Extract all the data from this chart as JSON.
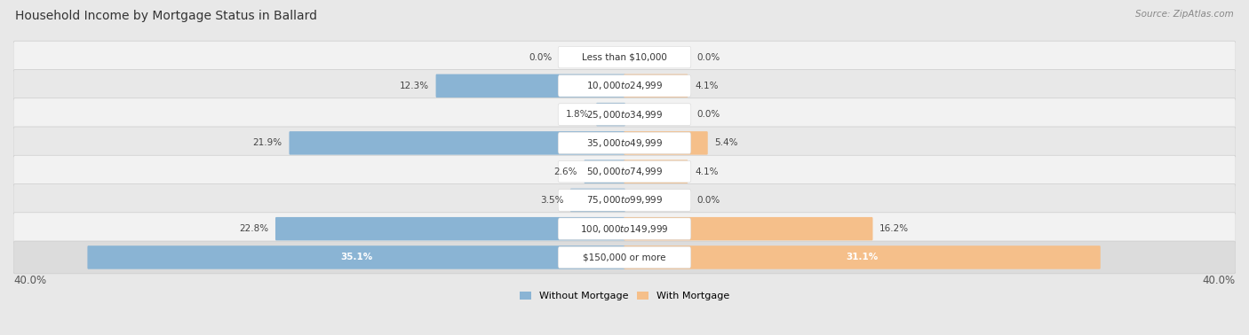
{
  "title": "Household Income by Mortgage Status in Ballard",
  "source": "Source: ZipAtlas.com",
  "categories": [
    "Less than $10,000",
    "$10,000 to $24,999",
    "$25,000 to $34,999",
    "$35,000 to $49,999",
    "$50,000 to $74,999",
    "$75,000 to $99,999",
    "$100,000 to $149,999",
    "$150,000 or more"
  ],
  "without_mortgage": [
    0.0,
    12.3,
    1.8,
    21.9,
    2.6,
    3.5,
    22.8,
    35.1
  ],
  "with_mortgage": [
    0.0,
    4.1,
    0.0,
    5.4,
    4.1,
    0.0,
    16.2,
    31.1
  ],
  "color_without": "#8ab4d4",
  "color_with": "#f5bf8a",
  "axis_max": 40.0,
  "bg_color": "#e8e8e8",
  "row_bg_light": "#f0f0f0",
  "row_bg_dark": "#e0e0e0",
  "title_fontsize": 10,
  "label_fontsize": 7.5,
  "tick_fontsize": 8.5,
  "legend_fontsize": 8,
  "source_fontsize": 7.5
}
